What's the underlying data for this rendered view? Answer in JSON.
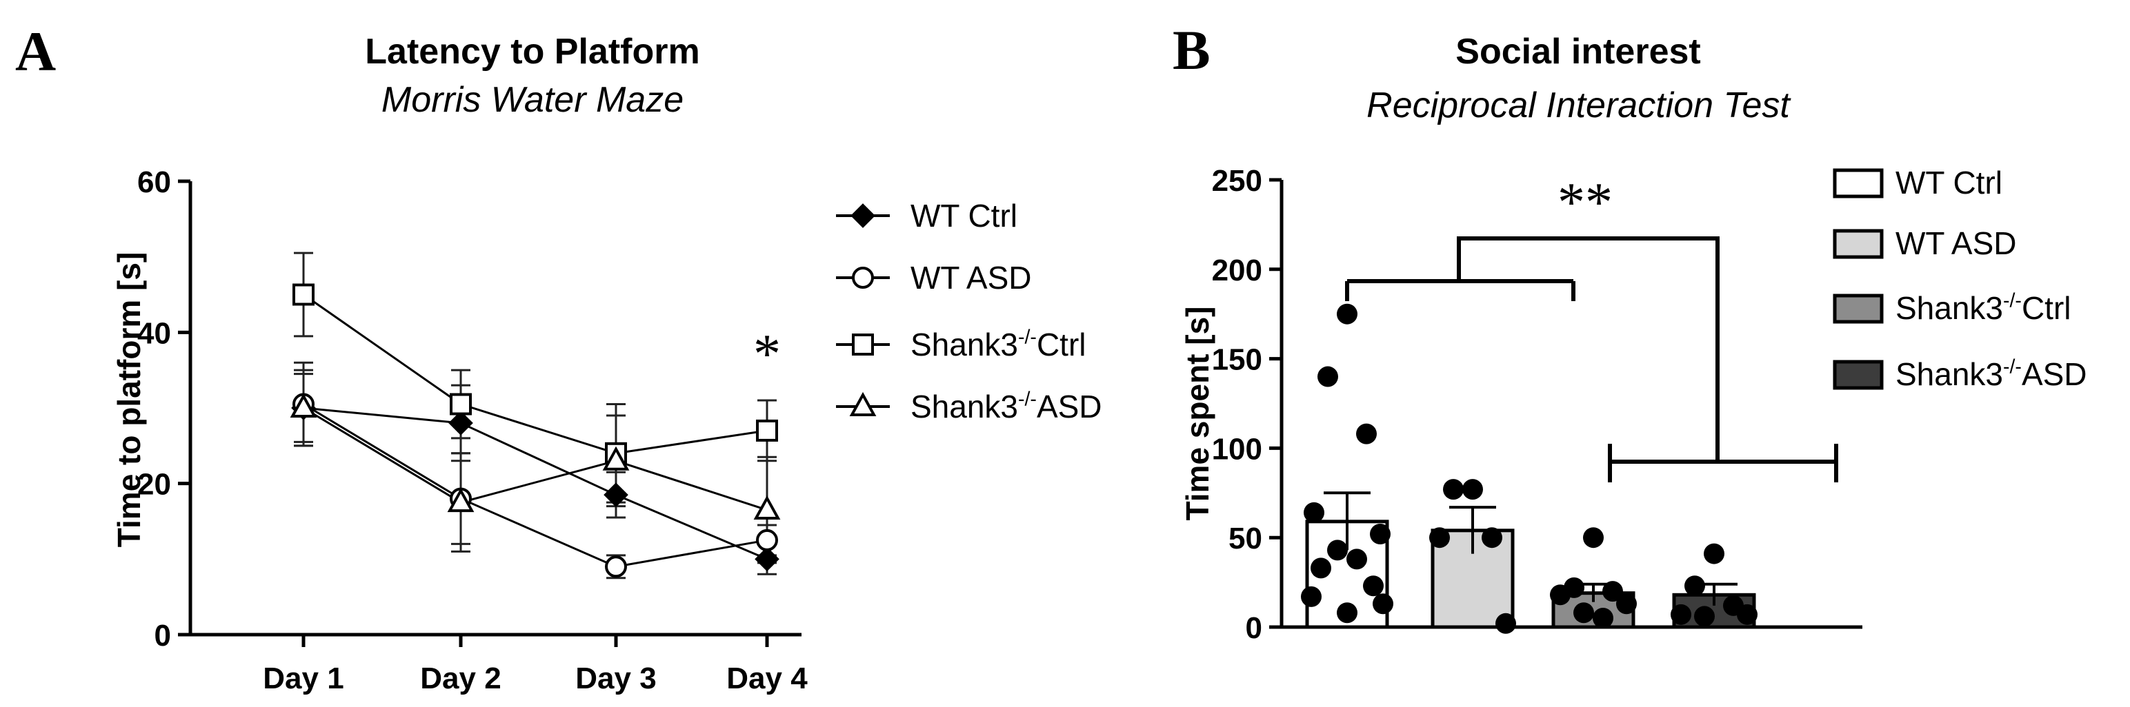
{
  "chart_data": [
    {
      "panel": "A",
      "type": "line",
      "title": "Latency to Platform",
      "subtitle": "Morris Water Maze",
      "xlabel": "",
      "ylabel": "Time to platform [s]",
      "categories": [
        "Day 1",
        "Day 2",
        "Day 3",
        "Day 4"
      ],
      "ylim": [
        0,
        60
      ],
      "yticks": [
        0,
        20,
        40,
        60
      ],
      "annotation": "*",
      "series": [
        {
          "name": "WT Ctrl",
          "marker": "diamond",
          "values": [
            30,
            28,
            18.5,
            10
          ],
          "sem": [
            5,
            5,
            3,
            2
          ]
        },
        {
          "name": "WT ASD",
          "marker": "circle",
          "values": [
            30.5,
            18,
            9,
            12.5
          ],
          "sem": [
            5.5,
            6,
            1.5,
            2
          ]
        },
        {
          "name": "Shank3-/-Ctrl",
          "marker": "square",
          "values": [
            45,
            30.5,
            24,
            27
          ],
          "sem": [
            5.5,
            4.5,
            6.5,
            4
          ]
        },
        {
          "name": "Shank3-/-ASD",
          "marker": "triangle",
          "values": [
            30,
            17.5,
            23,
            16.5
          ],
          "sem": [
            4.5,
            6.5,
            6,
            7
          ]
        }
      ],
      "legend_labels": [
        {
          "base": "WT Ctrl",
          "sup": "",
          "rest": ""
        },
        {
          "base": "WT ASD",
          "sup": "",
          "rest": ""
        },
        {
          "base": "Shank3",
          "sup": "-/-",
          "rest": "Ctrl"
        },
        {
          "base": "Shank3",
          "sup": "-/-",
          "rest": "ASD"
        }
      ]
    },
    {
      "panel": "B",
      "type": "bar",
      "title": "Social interest",
      "subtitle": "Reciprocal Interaction Test",
      "xlabel": "",
      "ylabel": "Time spent [s]",
      "categories": [
        "WT Ctrl",
        "WT ASD",
        "Shank3-/-Ctrl",
        "Shank3-/-ASD"
      ],
      "values": [
        59,
        54,
        19,
        18
      ],
      "sem": [
        16,
        13,
        5,
        6
      ],
      "colors": [
        "#ffffff",
        "#d6d6d6",
        "#8c8c8c",
        "#3c3c3c"
      ],
      "ylim": [
        0,
        250
      ],
      "yticks": [
        0,
        50,
        100,
        150,
        200,
        250
      ],
      "annotation": "**",
      "points": [
        [
          175,
          140,
          108,
          64,
          52,
          43,
          38,
          33,
          23,
          17,
          13,
          8
        ],
        [
          77,
          77,
          50,
          50,
          2
        ],
        [
          50,
          22,
          20,
          18,
          13,
          8,
          5
        ],
        [
          41,
          23,
          12,
          7,
          7,
          6
        ]
      ],
      "legend_labels": [
        {
          "base": "WT Ctrl",
          "sup": "",
          "rest": ""
        },
        {
          "base": "WT ASD",
          "sup": "",
          "rest": ""
        },
        {
          "base": "Shank3",
          "sup": "-/-",
          "rest": "Ctrl"
        },
        {
          "base": "Shank3",
          "sup": "-/-",
          "rest": "ASD"
        }
      ]
    }
  ]
}
